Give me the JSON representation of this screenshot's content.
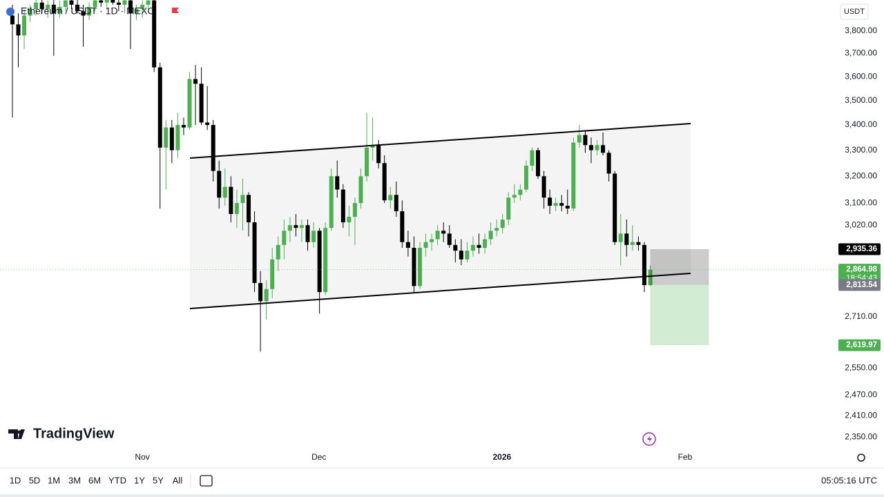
{
  "chart_data": {
    "type": "candlestick",
    "title": "Ethereum / USDT · 1D · MEXC",
    "yscale": "log",
    "up_color": "#4caf50",
    "down_color": "#000000",
    "ylim": [
      2318,
      3942
    ],
    "yticks": [
      {
        "value": 3800,
        "label": "3,800.00"
      },
      {
        "value": 3700,
        "label": "3,700.00"
      },
      {
        "value": 3600,
        "label": "3,600.00"
      },
      {
        "value": 3500,
        "label": "3,500.00"
      },
      {
        "value": 3400,
        "label": "3,400.00"
      },
      {
        "value": 3300,
        "label": "3,300.00"
      },
      {
        "value": 3200,
        "label": "3,200.00"
      },
      {
        "value": 3100,
        "label": "3,100.00"
      },
      {
        "value": 3020,
        "label": "3,020.00"
      },
      {
        "value": 2710,
        "label": "2,710.00"
      },
      {
        "value": 2550,
        "label": "2,550.00"
      },
      {
        "value": 2470,
        "label": "2,470.00"
      },
      {
        "value": 2410,
        "label": "2,410.00"
      },
      {
        "value": 2350,
        "label": "2,350.00"
      }
    ],
    "xlim": [
      -2.1,
      139.4
    ],
    "xticks": [
      {
        "value": 22,
        "label": "Nov"
      },
      {
        "value": 51.9,
        "label": "Dec"
      },
      {
        "value": 82.9,
        "label": "2026"
      },
      {
        "value": 113.9,
        "label": "Feb"
      }
    ],
    "candles": [
      [
        3870,
        3920,
        3430,
        3830
      ],
      [
        3830,
        3880,
        3640,
        3780
      ],
      [
        3780,
        3900,
        3720,
        3870
      ],
      [
        3870,
        3920,
        3840,
        3900
      ],
      [
        3900,
        3960,
        3870,
        3930
      ],
      [
        3930,
        3960,
        3880,
        3900
      ],
      [
        3900,
        3940,
        3860,
        3920
      ],
      [
        3920,
        3950,
        3690,
        3880
      ],
      [
        3880,
        3940,
        3860,
        3910
      ],
      [
        3910,
        3960,
        3890,
        3940
      ],
      [
        3940,
        3970,
        3900,
        3920
      ],
      [
        3920,
        3950,
        3880,
        3890
      ],
      [
        3890,
        3920,
        3730,
        3870
      ],
      [
        3870,
        3930,
        3850,
        3910
      ],
      [
        3910,
        3960,
        3890,
        3940
      ],
      [
        3940,
        3970,
        3910,
        3930
      ],
      [
        3930,
        3960,
        3900,
        3950
      ],
      [
        3950,
        3980,
        3920,
        3930
      ],
      [
        3930,
        3960,
        3890,
        3920
      ],
      [
        3920,
        3950,
        3880,
        3940
      ],
      [
        3940,
        3960,
        3720,
        3880
      ],
      [
        3880,
        3920,
        3850,
        3900
      ],
      [
        3900,
        3940,
        3860,
        3920
      ],
      [
        3920,
        3950,
        3900,
        3940
      ],
      [
        3940,
        3960,
        3620,
        3640
      ],
      [
        3640,
        3660,
        3080,
        3310
      ],
      [
        3310,
        3420,
        3150,
        3390
      ],
      [
        3390,
        3420,
        3250,
        3300
      ],
      [
        3300,
        3450,
        3270,
        3400
      ],
      [
        3400,
        3430,
        3360,
        3390
      ],
      [
        3390,
        3620,
        3380,
        3590
      ],
      [
        3590,
        3650,
        3400,
        3570
      ],
      [
        3570,
        3640,
        3400,
        3410
      ],
      [
        3410,
        3560,
        3380,
        3400
      ],
      [
        3400,
        3420,
        3180,
        3220
      ],
      [
        3220,
        3260,
        3080,
        3120
      ],
      [
        3120,
        3230,
        3090,
        3160
      ],
      [
        3160,
        3200,
        3030,
        3060
      ],
      [
        3060,
        3150,
        3010,
        3100
      ],
      [
        3100,
        3190,
        3000,
        3130
      ],
      [
        3130,
        3140,
        2980,
        3030
      ],
      [
        3030,
        3070,
        2790,
        2820
      ],
      [
        2820,
        2860,
        2600,
        2760
      ],
      [
        2760,
        2830,
        2700,
        2800
      ],
      [
        2800,
        2940,
        2770,
        2900
      ],
      [
        2900,
        2980,
        2860,
        2950
      ],
      [
        2950,
        3040,
        2900,
        3000
      ],
      [
        3000,
        3050,
        2960,
        3020
      ],
      [
        3020,
        3060,
        2980,
        3010
      ],
      [
        3010,
        3040,
        2960,
        3020
      ],
      [
        3020,
        3040,
        2930,
        2960
      ],
      [
        2960,
        3030,
        2940,
        3000
      ],
      [
        3000,
        3010,
        2720,
        2790
      ],
      [
        2790,
        3030,
        2780,
        3010
      ],
      [
        3010,
        3230,
        3000,
        3200
      ],
      [
        3200,
        3260,
        3120,
        3150
      ],
      [
        3150,
        3170,
        3010,
        3030
      ],
      [
        3030,
        3090,
        2980,
        3050
      ],
      [
        3050,
        3120,
        2950,
        3100
      ],
      [
        3100,
        3230,
        3080,
        3200
      ],
      [
        3200,
        3450,
        3180,
        3310
      ],
      [
        3310,
        3430,
        3260,
        3320
      ],
      [
        3320,
        3340,
        3230,
        3250
      ],
      [
        3250,
        3280,
        3100,
        3110
      ],
      [
        3110,
        3160,
        3080,
        3130
      ],
      [
        3130,
        3180,
        3050,
        3070
      ],
      [
        3070,
        3110,
        2940,
        2960
      ],
      [
        2960,
        3000,
        2910,
        2940
      ],
      [
        2940,
        2980,
        2790,
        2810
      ],
      [
        2810,
        2960,
        2800,
        2940
      ],
      [
        2940,
        2990,
        2910,
        2960
      ],
      [
        2960,
        2990,
        2930,
        2970
      ],
      [
        2970,
        3020,
        2950,
        3000
      ],
      [
        3000,
        3030,
        2960,
        2990
      ],
      [
        2990,
        3020,
        2940,
        2950
      ],
      [
        2950,
        2970,
        2890,
        2930
      ],
      [
        2930,
        2970,
        2880,
        2900
      ],
      [
        2900,
        2960,
        2890,
        2930
      ],
      [
        2930,
        2980,
        2910,
        2950
      ],
      [
        2950,
        2990,
        2920,
        2940
      ],
      [
        2940,
        2990,
        2920,
        2970
      ],
      [
        2970,
        3030,
        2950,
        3000
      ],
      [
        3000,
        3040,
        2980,
        3010
      ],
      [
        3010,
        3060,
        2990,
        3040
      ],
      [
        3040,
        3140,
        3020,
        3120
      ],
      [
        3120,
        3170,
        3100,
        3130
      ],
      [
        3130,
        3170,
        3110,
        3150
      ],
      [
        3150,
        3260,
        3140,
        3240
      ],
      [
        3240,
        3310,
        3220,
        3300
      ],
      [
        3300,
        3310,
        3190,
        3200
      ],
      [
        3200,
        3220,
        3080,
        3120
      ],
      [
        3120,
        3150,
        3060,
        3090
      ],
      [
        3090,
        3120,
        3070,
        3100
      ],
      [
        3100,
        3130,
        3070,
        3090
      ],
      [
        3090,
        3150,
        3060,
        3080
      ],
      [
        3080,
        3350,
        3070,
        3330
      ],
      [
        3330,
        3400,
        3310,
        3360
      ],
      [
        3360,
        3380,
        3290,
        3320
      ],
      [
        3320,
        3350,
        3250,
        3300
      ],
      [
        3300,
        3340,
        3280,
        3320
      ],
      [
        3320,
        3370,
        3280,
        3290
      ],
      [
        3290,
        3300,
        3180,
        3210
      ],
      [
        3210,
        3220,
        2950,
        2960
      ],
      [
        2960,
        3060,
        2880,
        2990
      ],
      [
        2990,
        3040,
        2910,
        2950
      ],
      [
        2950,
        3020,
        2930,
        2960
      ],
      [
        2960,
        2980,
        2930,
        2950
      ],
      [
        2950,
        2960,
        2790,
        2813
      ],
      [
        2813,
        2880,
        2810,
        2865
      ]
    ],
    "price_labels": [
      {
        "value": 2935.36,
        "label": "2,935.36",
        "color": "#000000"
      },
      {
        "value": 2864.98,
        "label": "2,864.98",
        "sublabel": "18:54:43",
        "color": "#4caf50"
      },
      {
        "value": 2813.54,
        "label": "2,813.54",
        "color": "#787b86"
      },
      {
        "value": 2619.97,
        "label": "2,619.97",
        "color": "#4caf50"
      }
    ]
  },
  "currency": "USDT",
  "branding": "TradingView",
  "toolbar": {
    "ranges": [
      "1D",
      "5D",
      "1M",
      "3M",
      "6M",
      "YTD",
      "1Y",
      "5Y",
      "All"
    ],
    "clock": "05:05:16 UTC"
  }
}
